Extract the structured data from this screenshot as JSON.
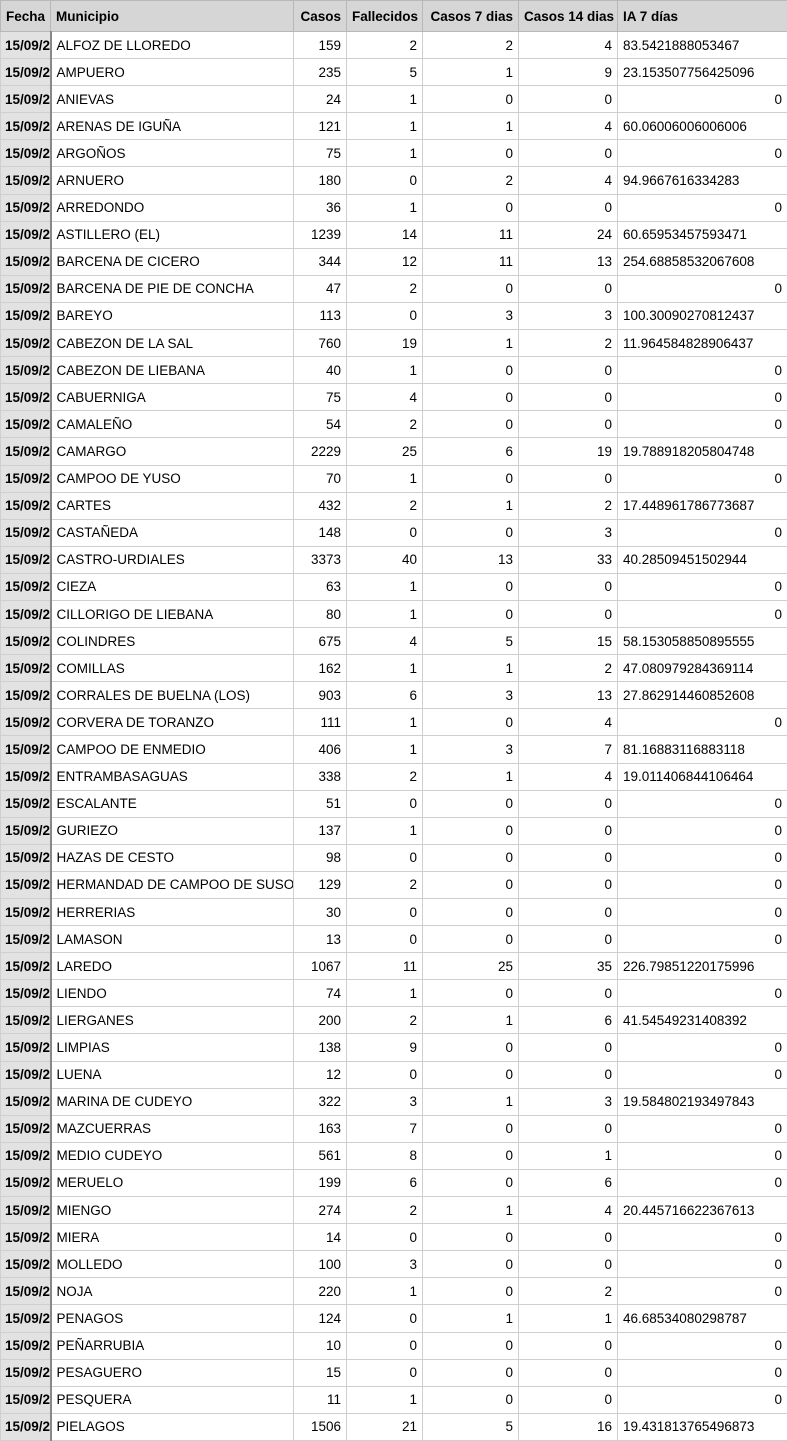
{
  "headers": [
    "Fecha",
    "Municipio",
    "Casos",
    "Fallecidos",
    "Casos 7 dias",
    "Casos 14 dias",
    "IA 7 días"
  ],
  "rows": [
    [
      "15/09/2",
      "ALFOZ DE LLOREDO",
      "159",
      "2",
      "2",
      "4",
      "83.5421888053467"
    ],
    [
      "15/09/2",
      "AMPUERO",
      "235",
      "5",
      "1",
      "9",
      "23.153507756425096"
    ],
    [
      "15/09/2",
      "ANIEVAS",
      "24",
      "1",
      "0",
      "0",
      "0"
    ],
    [
      "15/09/2",
      "ARENAS DE IGUÑA",
      "121",
      "1",
      "1",
      "4",
      "60.06006006006006"
    ],
    [
      "15/09/2",
      "ARGOÑOS",
      "75",
      "1",
      "0",
      "0",
      "0"
    ],
    [
      "15/09/2",
      "ARNUERO",
      "180",
      "0",
      "2",
      "4",
      "94.9667616334283"
    ],
    [
      "15/09/2",
      "ARREDONDO",
      "36",
      "1",
      "0",
      "0",
      "0"
    ],
    [
      "15/09/2",
      "ASTILLERO (EL)",
      "1239",
      "14",
      "11",
      "24",
      "60.65953457593471"
    ],
    [
      "15/09/2",
      "BARCENA DE CICERO",
      "344",
      "12",
      "11",
      "13",
      "254.68858532067608"
    ],
    [
      "15/09/2",
      "BARCENA DE PIE DE CONCHA",
      "47",
      "2",
      "0",
      "0",
      "0"
    ],
    [
      "15/09/2",
      "BAREYO",
      "113",
      "0",
      "3",
      "3",
      "100.30090270812437"
    ],
    [
      "15/09/2",
      "CABEZON DE LA SAL",
      "760",
      "19",
      "1",
      "2",
      "11.964584828906437"
    ],
    [
      "15/09/2",
      "CABEZON DE LIEBANA",
      "40",
      "1",
      "0",
      "0",
      "0"
    ],
    [
      "15/09/2",
      "CABUERNIGA",
      "75",
      "4",
      "0",
      "0",
      "0"
    ],
    [
      "15/09/2",
      "CAMALEÑO",
      "54",
      "2",
      "0",
      "0",
      "0"
    ],
    [
      "15/09/2",
      "CAMARGO",
      "2229",
      "25",
      "6",
      "19",
      "19.788918205804748"
    ],
    [
      "15/09/2",
      "CAMPOO DE YUSO",
      "70",
      "1",
      "0",
      "0",
      "0"
    ],
    [
      "15/09/2",
      "CARTES",
      "432",
      "2",
      "1",
      "2",
      "17.448961786773687"
    ],
    [
      "15/09/2",
      "CASTAÑEDA",
      "148",
      "0",
      "0",
      "3",
      "0"
    ],
    [
      "15/09/2",
      "CASTRO-URDIALES",
      "3373",
      "40",
      "13",
      "33",
      "40.28509451502944"
    ],
    [
      "15/09/2",
      "CIEZA",
      "63",
      "1",
      "0",
      "0",
      "0"
    ],
    [
      "15/09/2",
      "CILLORIGO DE LIEBANA",
      "80",
      "1",
      "0",
      "0",
      "0"
    ],
    [
      "15/09/2",
      "COLINDRES",
      "675",
      "4",
      "5",
      "15",
      "58.153058850895555"
    ],
    [
      "15/09/2",
      "COMILLAS",
      "162",
      "1",
      "1",
      "2",
      "47.080979284369114"
    ],
    [
      "15/09/2",
      "CORRALES DE BUELNA (LOS)",
      "903",
      "6",
      "3",
      "13",
      "27.862914460852608"
    ],
    [
      "15/09/2",
      "CORVERA DE TORANZO",
      "111",
      "1",
      "0",
      "4",
      "0"
    ],
    [
      "15/09/2",
      "CAMPOO DE ENMEDIO",
      "406",
      "1",
      "3",
      "7",
      "81.16883116883118"
    ],
    [
      "15/09/2",
      "ENTRAMBASAGUAS",
      "338",
      "2",
      "1",
      "4",
      "19.011406844106464"
    ],
    [
      "15/09/2",
      "ESCALANTE",
      "51",
      "0",
      "0",
      "0",
      "0"
    ],
    [
      "15/09/2",
      "GURIEZO",
      "137",
      "1",
      "0",
      "0",
      "0"
    ],
    [
      "15/09/2",
      "HAZAS DE CESTO",
      "98",
      "0",
      "0",
      "0",
      "0"
    ],
    [
      "15/09/2",
      "HERMANDAD DE CAMPOO DE SUSO",
      "129",
      "2",
      "0",
      "0",
      "0"
    ],
    [
      "15/09/2",
      "HERRERIAS",
      "30",
      "0",
      "0",
      "0",
      "0"
    ],
    [
      "15/09/2",
      "LAMASON",
      "13",
      "0",
      "0",
      "0",
      "0"
    ],
    [
      "15/09/2",
      "LAREDO",
      "1067",
      "11",
      "25",
      "35",
      "226.79851220175996"
    ],
    [
      "15/09/2",
      "LIENDO",
      "74",
      "1",
      "0",
      "0",
      "0"
    ],
    [
      "15/09/2",
      "LIERGANES",
      "200",
      "2",
      "1",
      "6",
      "41.54549231408392"
    ],
    [
      "15/09/2",
      "LIMPIAS",
      "138",
      "9",
      "0",
      "0",
      "0"
    ],
    [
      "15/09/2",
      "LUENA",
      "12",
      "0",
      "0",
      "0",
      "0"
    ],
    [
      "15/09/2",
      "MARINA DE CUDEYO",
      "322",
      "3",
      "1",
      "3",
      "19.584802193497843"
    ],
    [
      "15/09/2",
      "MAZCUERRAS",
      "163",
      "7",
      "0",
      "0",
      "0"
    ],
    [
      "15/09/2",
      "MEDIO CUDEYO",
      "561",
      "8",
      "0",
      "1",
      "0"
    ],
    [
      "15/09/2",
      "MERUELO",
      "199",
      "6",
      "0",
      "6",
      "0"
    ],
    [
      "15/09/2",
      "MIENGO",
      "274",
      "2",
      "1",
      "4",
      "20.445716622367613"
    ],
    [
      "15/09/2",
      "MIERA",
      "14",
      "0",
      "0",
      "0",
      "0"
    ],
    [
      "15/09/2",
      "MOLLEDO",
      "100",
      "3",
      "0",
      "0",
      "0"
    ],
    [
      "15/09/2",
      "NOJA",
      "220",
      "1",
      "0",
      "2",
      "0"
    ],
    [
      "15/09/2",
      "PENAGOS",
      "124",
      "0",
      "1",
      "1",
      "46.68534080298787"
    ],
    [
      "15/09/2",
      "PEÑARRUBIA",
      "10",
      "0",
      "0",
      "0",
      "0"
    ],
    [
      "15/09/2",
      "PESAGUERO",
      "15",
      "0",
      "0",
      "0",
      "0"
    ],
    [
      "15/09/2",
      "PESQUERA",
      "11",
      "1",
      "0",
      "0",
      "0"
    ],
    [
      "15/09/2",
      "PIELAGOS",
      "1506",
      "21",
      "5",
      "16",
      "19.431813765496873"
    ]
  ]
}
